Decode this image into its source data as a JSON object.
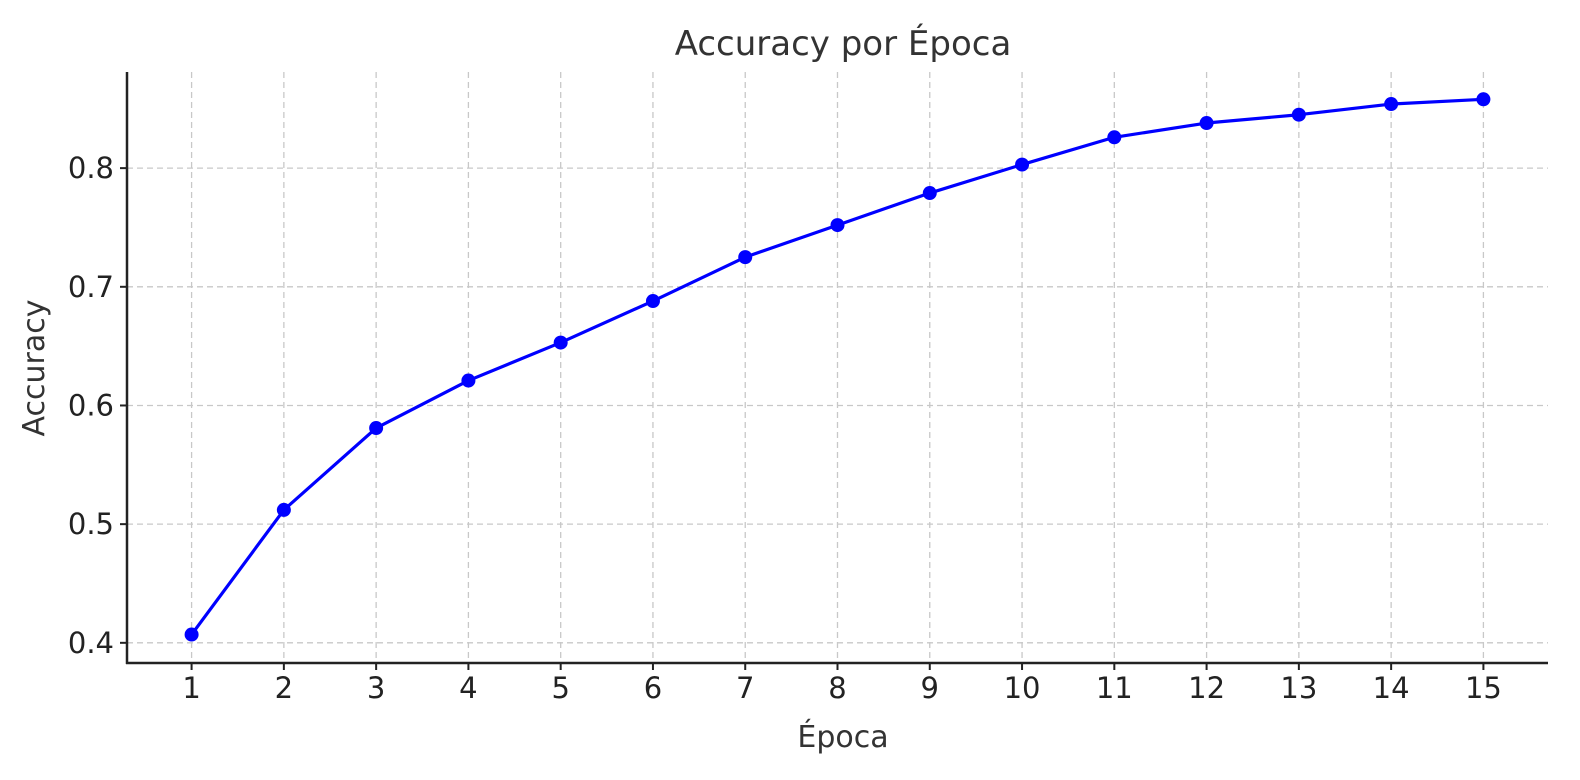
{
  "chart_data": {
    "type": "line",
    "title": "Accuracy por Época",
    "xlabel": "Época",
    "ylabel": "Accuracy",
    "x": [
      1,
      2,
      3,
      4,
      5,
      6,
      7,
      8,
      9,
      10,
      11,
      12,
      13,
      14,
      15
    ],
    "series": [
      {
        "values": [
          0.407,
          0.512,
          0.581,
          0.621,
          0.653,
          0.688,
          0.725,
          0.752,
          0.779,
          0.803,
          0.826,
          0.838,
          0.845,
          0.854,
          0.858
        ],
        "color": "#0000ff"
      }
    ],
    "xticks": [
      "1",
      "2",
      "3",
      "4",
      "5",
      "6",
      "7",
      "8",
      "9",
      "10",
      "11",
      "12",
      "13",
      "14",
      "15"
    ],
    "yticks": [
      0.4,
      0.5,
      0.6,
      0.7,
      0.8
    ],
    "ytick_labels": [
      "0.4",
      "0.5",
      "0.6",
      "0.7",
      "0.8"
    ],
    "xlim": [
      0.3,
      15.7
    ],
    "ylim": [
      0.383,
      0.881
    ],
    "grid": true,
    "marker": "circle"
  }
}
